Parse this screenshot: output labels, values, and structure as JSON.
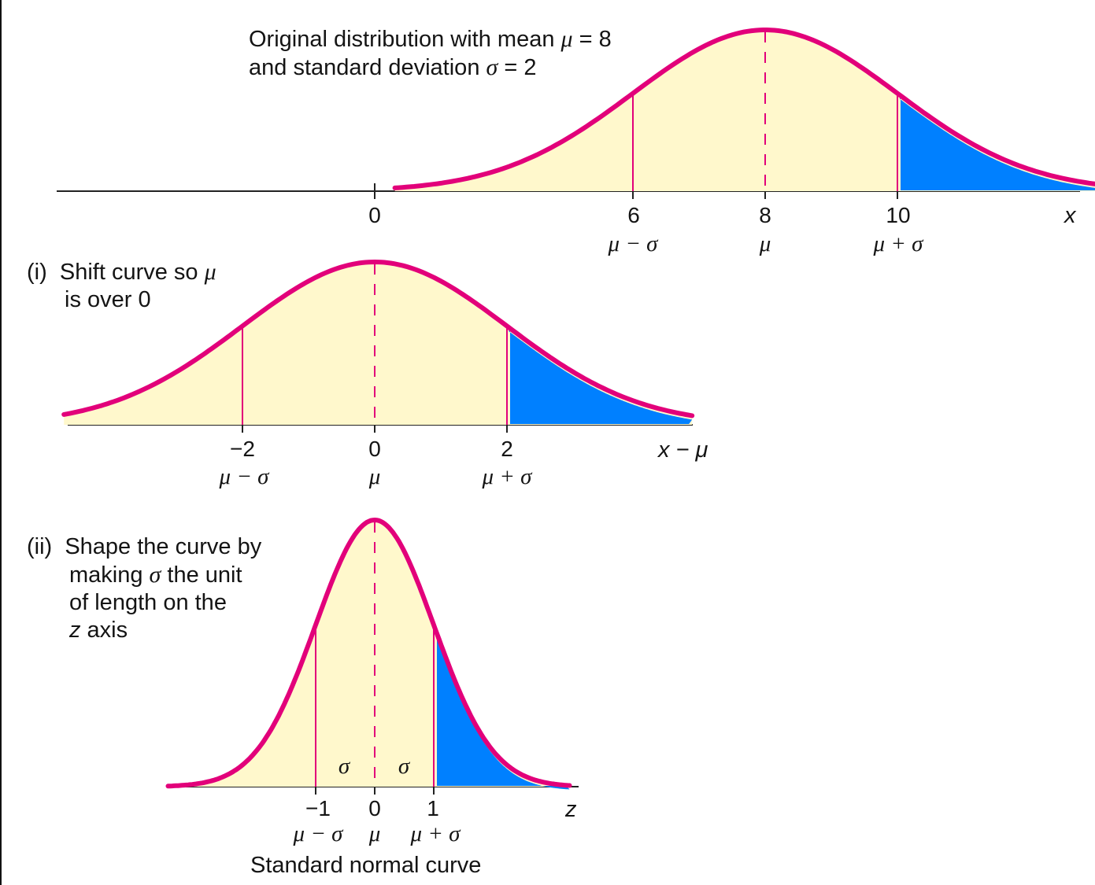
{
  "colors": {
    "curve": "#e2007a",
    "fill": "#fff8cc",
    "tail": "#0080ff",
    "axis": "#222222",
    "text": "#141414"
  },
  "panels": {
    "original": {
      "label_line1_prefix": "Original distribution with mean ",
      "label_line1_sym": "μ",
      "label_line1_suffix": " = 8",
      "label_line2_prefix": "and standard deviation ",
      "label_line2_sym": "σ",
      "label_line2_suffix": " = 2",
      "axis_var": "x",
      "zero_tick": "0",
      "ticks": [
        "6",
        "8",
        "10"
      ],
      "symbols": [
        "μ − σ",
        "μ",
        "μ + σ"
      ]
    },
    "shifted": {
      "label_line1_prefix": "(i)  Shift curve so ",
      "label_line1_sym": "μ",
      "label_line2": "is over 0",
      "axis_var": "x − μ",
      "ticks": [
        "−2",
        "0",
        "2"
      ],
      "symbols": [
        "μ − σ",
        "μ",
        "μ + σ"
      ]
    },
    "standard": {
      "label_line1": "(ii)  Shape the curve by",
      "label_line2_prefix": "making ",
      "label_line2_sym": "σ",
      "label_line2_suffix": " the unit",
      "label_line3": "of length on the",
      "label_line4_sym": "z",
      "label_line4_suffix": " axis",
      "axis_var": "z",
      "ticks": [
        "−1",
        "0",
        "1"
      ],
      "symbols": [
        "μ − σ",
        "μ",
        "μ + σ"
      ],
      "sigma_labels": [
        "σ",
        "σ"
      ],
      "caption": "Standard normal curve"
    }
  },
  "chart_data": [
    {
      "type": "area",
      "title": "Original distribution with mean μ = 8 and standard deviation σ = 2",
      "xlabel": "x",
      "mean": 8,
      "sd": 2,
      "x_ticks": [
        0,
        6,
        8,
        10
      ],
      "tick_symbols": {
        "6": "μ − σ",
        "8": "μ",
        "10": "μ + σ"
      },
      "shaded_region": {
        "from": 10,
        "to": "∞",
        "color": "#0080ff"
      },
      "curve_range": [
        2.4,
        14.0
      ]
    },
    {
      "type": "area",
      "title": "(i) Shift curve so μ is over 0",
      "xlabel": "x − μ",
      "mean": 0,
      "sd": 2,
      "x_ticks": [
        -2,
        0,
        2
      ],
      "tick_symbols": {
        "-2": "μ − σ",
        "0": "μ",
        "2": "μ + σ"
      },
      "shaded_region": {
        "from": 2,
        "to": "∞",
        "color": "#0080ff"
      },
      "curve_range": [
        -4.7,
        4.8
      ]
    },
    {
      "type": "area",
      "title": "(ii) Shape the curve by making σ the unit of length on the z axis",
      "xlabel": "z",
      "mean": 0,
      "sd": 1,
      "x_ticks": [
        -1,
        0,
        1
      ],
      "tick_symbols": {
        "-1": "μ − σ",
        "0": "μ",
        "1": "μ + σ"
      },
      "shaded_region": {
        "from": 1,
        "to": "∞",
        "color": "#0080ff"
      },
      "interval_labels": [
        "σ",
        "σ"
      ],
      "caption": "Standard normal curve",
      "curve_range": [
        -3.5,
        3.3
      ]
    }
  ]
}
